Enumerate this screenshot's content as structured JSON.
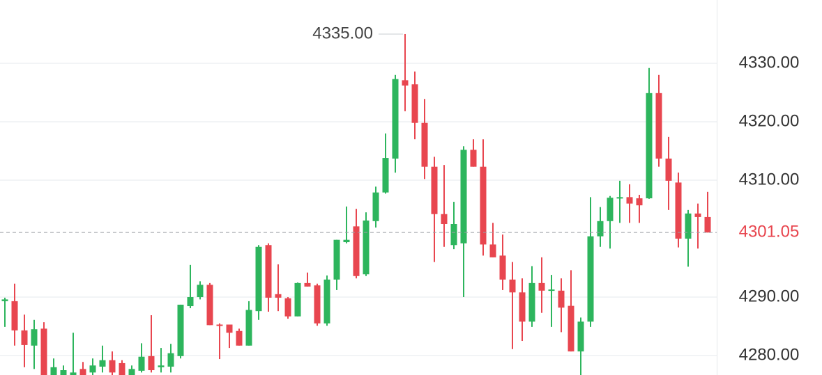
{
  "chart_data": {
    "type": "candlestick",
    "up_color": "#2db55d",
    "down_color": "#e8464f",
    "grid": true,
    "ylim": [
      4276.67,
      4340.83
    ],
    "yticks": [
      {
        "value": 4280,
        "label": "4280.00"
      },
      {
        "value": 4290,
        "label": "4290.00"
      },
      {
        "value": 4310,
        "label": "4310.00"
      },
      {
        "value": 4320,
        "label": "4320.00"
      },
      {
        "value": 4330,
        "label": "4330.00"
      }
    ],
    "open": [
      4289.3,
      4289.3,
      4284.3,
      4281.7,
      4284.6,
      4276.5,
      4276.5,
      4276.5,
      4277.7,
      4277.1,
      4278.1,
      4279.2,
      4278.7,
      4276.5,
      4277.4,
      4279.9,
      4278.0,
      4278.1,
      4279.9,
      4288.45,
      4290.0,
      4292.1,
      4285.3,
      4285.3,
      4284.2,
      4281.7,
      4287.6,
      4298.9,
      4290.5,
      4289.8,
      4286.7,
      4292.4,
      4292.0,
      4285.5,
      4293.0,
      4299.4,
      4302.1,
      4293.9,
      4303.0,
      4307.9,
      4313.7,
      4327.1,
      4326.4,
      4319.8,
      4312.3,
      4304.2,
      4298.9,
      4299.2,
      4315.2,
      4312.3,
      4299.0,
      4297.1,
      4293.0,
      4290.8,
      4285.8,
      4292.4,
      4291.2,
      4291.1,
      4288.5,
      4280.7,
      4285.8,
      4300.4,
      4303.0,
      4307.0,
      4307.1,
      4306.9,
      4306.9,
      4324.9,
      4313.7,
      4309.6,
      4300.0,
      4304.3,
      4303.7
    ],
    "high": [
      4289.9,
      4292.3,
      4287.0,
      4286.1,
      4285.7,
      4279.5,
      4278.3,
      4283.9,
      4278.9,
      4279.5,
      4281.7,
      4280.7,
      4279.2,
      4278.3,
      4282.1,
      4286.9,
      4281.3,
      4282.0,
      4288.7,
      4295.5,
      4292.7,
      4292.4,
      4285.5,
      4285.3,
      4284.6,
      4289.3,
      4298.9,
      4299.2,
      4295.6,
      4290.0,
      4292.5,
      4294.2,
      4292.3,
      4293.7,
      4299.8,
      4305.5,
      4305.1,
      4304.5,
      4308.9,
      4318.0,
      4328.0,
      4335.0,
      4328.6,
      4323.9,
      4314.0,
      4312.6,
      4306.3,
      4315.8,
      4317.0,
      4317.0,
      4302.7,
      4300.7,
      4296.0,
      4293.2,
      4295.3,
      4296.8,
      4293.8,
      4293.2,
      4294.6,
      4286.5,
      4307.1,
      4305.4,
      4307.3,
      4309.9,
      4309.3,
      4307.5,
      4329.2,
      4328.0,
      4317.4,
      4311.3,
      4304.9,
      4306.0,
      4308.0
    ],
    "low": [
      4284.9,
      4281.7,
      4278.0,
      4277.7,
      4276.0,
      4276.0,
      4276.0,
      4276.0,
      4276.0,
      4276.0,
      4277.1,
      4276.0,
      4276.0,
      4276.0,
      4277.1,
      4277.1,
      4277.1,
      4277.1,
      4279.5,
      4288.1,
      4289.6,
      4285.2,
      4279.4,
      4281.3,
      4281.7,
      4281.7,
      4286.1,
      4287.5,
      4287.6,
      4286.3,
      4286.7,
      4291.8,
      4285.1,
      4285.1,
      4291.2,
      4299.2,
      4293.2,
      4293.6,
      4301.9,
      4307.7,
      4311.3,
      4321.8,
      4317.0,
      4310.2,
      4296.0,
      4298.6,
      4298.2,
      4290.0,
      4312.3,
      4297.1,
      4296.8,
      4291.2,
      4281.1,
      4282.5,
      4284.9,
      4287.3,
      4284.9,
      4284.0,
      4280.7,
      4276.0,
      4284.9,
      4298.6,
      4298.3,
      4302.7,
      4302.7,
      4302.7,
      4306.8,
      4312.3,
      4304.9,
      4298.5,
      4295.2,
      4298.3,
      4301.05
    ],
    "close": [
      4289.6,
      4284.3,
      4281.8,
      4284.5,
      4276.5,
      4278.0,
      4277.5,
      4277.1,
      4276.5,
      4278.3,
      4279.2,
      4277.1,
      4276.5,
      4277.7,
      4279.8,
      4277.5,
      4278.3,
      4280.4,
      4288.7,
      4290.0,
      4292.1,
      4285.2,
      4285.2,
      4283.9,
      4281.7,
      4287.8,
      4298.6,
      4289.9,
      4289.9,
      4286.7,
      4292.4,
      4291.8,
      4285.5,
      4293.0,
      4299.8,
      4299.8,
      4293.6,
      4303.1,
      4307.9,
      4313.8,
      4327.3,
      4326.2,
      4319.8,
      4312.3,
      4304.2,
      4302.5,
      4302.5,
      4315.2,
      4312.3,
      4299.0,
      4296.8,
      4293.0,
      4290.8,
      4285.8,
      4292.4,
      4291.1,
      4291.3,
      4288.2,
      4280.7,
      4285.8,
      4300.4,
      4303.0,
      4307.0,
      4307.1,
      4306.0,
      4305.7,
      4324.9,
      4313.7,
      4309.9,
      4300.0,
      4304.3,
      4303.7,
      4301.05
    ],
    "max_marker": {
      "value": 4335.0,
      "label": "4335.00"
    },
    "last_price": {
      "value": 4301.05,
      "label": "4301.05",
      "color": "#e8464f"
    }
  }
}
